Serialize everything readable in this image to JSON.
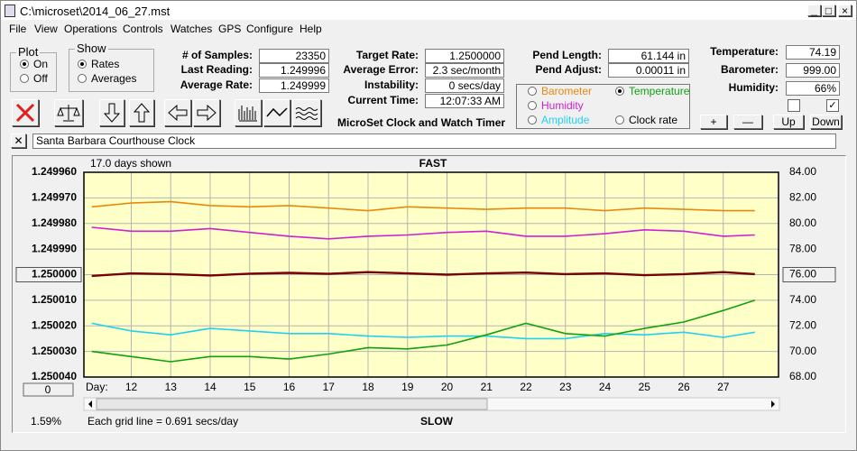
{
  "window": {
    "title": "C:\\microset\\2014_06_27.mst",
    "menu": [
      "File",
      "View",
      "Operations",
      "Controls",
      "Watches",
      "GPS",
      "Configure",
      "Help"
    ]
  },
  "plot_group": {
    "label": "Plot",
    "options": [
      "On",
      "Off"
    ]
  },
  "show_group": {
    "label": "Show",
    "options": [
      "Rates",
      "Averages"
    ]
  },
  "fields": [
    {
      "label": "# of Samples:",
      "value": "23350"
    },
    {
      "label": "Last Reading:",
      "value": "1.249996"
    },
    {
      "label": "Average Rate:",
      "value": "1.249999"
    },
    {
      "label": "Target Rate:",
      "value": "1.2500000"
    },
    {
      "label": "Average Error:",
      "value": "2.3 sec/month"
    },
    {
      "label": "Instability:",
      "value": "0 secs/day"
    },
    {
      "label": "Current Time:",
      "value": "12:07:33 AM"
    },
    {
      "label": "Pend Length:",
      "value": "61.144 in"
    },
    {
      "label": "Pend Adjust:",
      "value": "0.00011 in"
    },
    {
      "label": "Temperature:",
      "value": "74.19"
    },
    {
      "label": "Barometer:",
      "value": "999.00"
    },
    {
      "label": "Humidity:",
      "value": "66%"
    }
  ],
  "app_name": "MicroSet Clock and Watch Timer",
  "buttons": [
    "+",
    "—",
    "Up",
    "Down"
  ],
  "clock_name": "Santa Barbara Courthouse Clock",
  "chart_data": {
    "type": "line",
    "title": "FAST",
    "bottom_label": "SLOW",
    "days_shown": "17.0 days shown",
    "x_label": "Day:",
    "grid_note": "Each grid line = 0.691 secs/day",
    "percent": "1.59%",
    "scroll_value": "0",
    "grid": true,
    "background": "#ffffc8",
    "xlim": [
      10.8,
      28.4
    ],
    "xticks": [
      12,
      13,
      14,
      15,
      16,
      17,
      18,
      19,
      20,
      21,
      22,
      23,
      24,
      25,
      26,
      27
    ],
    "ylim": [
      1.25004,
      1.24996
    ],
    "yticks": [
      {
        "value": 1.24996,
        "label": "1.249960"
      },
      {
        "value": 1.24997,
        "label": "1.249970"
      },
      {
        "value": 1.24998,
        "label": "1.249980"
      },
      {
        "value": 1.24999,
        "label": "1.249990"
      },
      {
        "value": 1.25,
        "label": "1.250000"
      },
      {
        "value": 1.25001,
        "label": "1.250010"
      },
      {
        "value": 1.25002,
        "label": "1.250020"
      },
      {
        "value": 1.25003,
        "label": "1.250030"
      },
      {
        "value": 1.25004,
        "label": "1.250040"
      }
    ],
    "y2lim": [
      68,
      84
    ],
    "y2ticks": [
      {
        "value": 84,
        "label": "84.00"
      },
      {
        "value": 82,
        "label": "82.00"
      },
      {
        "value": 80,
        "label": "80.00"
      },
      {
        "value": 78,
        "label": "78.00"
      },
      {
        "value": 76,
        "label": "76.00"
      },
      {
        "value": 74,
        "label": "74.00"
      },
      {
        "value": 72,
        "label": "72.00"
      },
      {
        "value": 70,
        "label": "70.00"
      },
      {
        "value": 68,
        "label": "68.00"
      }
    ],
    "x": [
      11,
      12,
      13,
      14,
      15,
      16,
      17,
      18,
      19,
      20,
      21,
      22,
      23,
      24,
      25,
      26,
      27,
      27.8
    ],
    "series": [
      {
        "name": "Barometer",
        "color": "#e8890c",
        "axis": "y2",
        "values": [
          81.3,
          81.6,
          81.7,
          81.4,
          81.3,
          81.4,
          81.2,
          81.0,
          81.3,
          81.2,
          81.1,
          81.2,
          81.2,
          81.0,
          81.2,
          81.1,
          81.0,
          81.0
        ]
      },
      {
        "name": "Humidity",
        "color": "#d020d0",
        "axis": "y2",
        "values": [
          79.7,
          79.4,
          79.4,
          79.6,
          79.3,
          79.0,
          78.8,
          79.0,
          79.1,
          79.3,
          79.4,
          79.0,
          79.0,
          79.2,
          79.5,
          79.4,
          79.0,
          79.1
        ]
      },
      {
        "name": "Amplitude",
        "color": "#20d0f0",
        "axis": "y2",
        "values": [
          72.2,
          71.6,
          71.3,
          71.8,
          71.6,
          71.4,
          71.4,
          71.2,
          71.1,
          71.2,
          71.2,
          71.0,
          71.0,
          71.4,
          71.3,
          71.5,
          71.1,
          71.5
        ]
      },
      {
        "name": "Temperature",
        "color": "#10a010",
        "axis": "y2",
        "values": [
          70.0,
          69.6,
          69.2,
          69.6,
          69.6,
          69.4,
          69.8,
          70.3,
          70.2,
          70.5,
          71.3,
          72.2,
          71.4,
          71.2,
          71.8,
          72.3,
          73.2,
          74.0
        ]
      },
      {
        "name": "Clock rate",
        "color": "#780000",
        "values": [
          1.2500005,
          1.2499995,
          1.2499998,
          1.2500003,
          1.2499996,
          1.2499993,
          1.2499997,
          1.249999,
          1.2499995,
          1.25,
          1.2499995,
          1.2499992,
          1.2499998,
          1.2499995,
          1.2500002,
          1.2499998,
          1.249999,
          1.2499998
        ]
      }
    ]
  }
}
